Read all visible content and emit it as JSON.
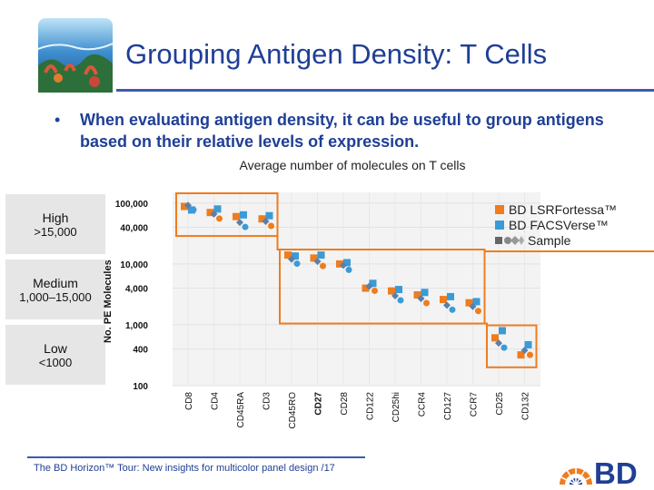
{
  "slide": {
    "title": "Grouping Antigen Density: T Cells",
    "bullet": "When evaluating antigen density, it can be useful to group antigens based on their relative levels of expression.",
    "footer_brand": "The BD Horizon™ Tour:",
    "footer_rest": " New insights for multicolor panel design /17",
    "logo_text": "BD"
  },
  "groups": [
    {
      "name": "High",
      "range": ">15,000"
    },
    {
      "name": "Medium",
      "range": "1,000–15,000"
    },
    {
      "name": "Low",
      "range": "<1000"
    }
  ],
  "legend": {
    "items": [
      {
        "label": "BD LSRFortessa™",
        "color": "#ee7d1f"
      },
      {
        "label": "BD FACSVerse™",
        "color": "#3a9bd6"
      },
      {
        "label": "Sample",
        "color": "#666666"
      }
    ]
  },
  "chart_data": {
    "type": "scatter",
    "title": "Average number of molecules on T cells",
    "xlabel": "",
    "ylabel": "No. PE Molecules",
    "y_scale": "log",
    "ylim": [
      100,
      150000
    ],
    "y_ticks": [
      100,
      400,
      1000,
      4000,
      10000,
      40000,
      100000
    ],
    "y_tick_labels": [
      "100",
      "400",
      "1,000",
      "4,000",
      "10,000",
      "40,000",
      "100,000"
    ],
    "categories": [
      "CD8",
      "CD4",
      "CD45RA",
      "CD3",
      "CD45RO",
      "CD27",
      "CD28",
      "CD122",
      "CD25hi",
      "CCR4",
      "CD127",
      "CCR7",
      "CD25",
      "CD132"
    ],
    "bold_categories": [
      "CD27"
    ],
    "series": [
      {
        "name": "BD LSRFortessa™",
        "color": "#ee7d1f",
        "values": [
          88000,
          70000,
          60000,
          55000,
          14000,
          12500,
          10000,
          4000,
          3600,
          3100,
          2600,
          2300,
          610,
          320
        ]
      },
      {
        "name": "BD FACSVerse™",
        "color": "#3a9bd6",
        "values": [
          77000,
          80000,
          64000,
          62000,
          13500,
          14000,
          10500,
          4800,
          3800,
          3400,
          2900,
          2400,
          800,
          470
        ]
      },
      {
        "name": "Sample",
        "color": "#666666",
        "values": [
          92000,
          66000,
          48000,
          50000,
          12000,
          11000,
          9500,
          4300,
          3000,
          2700,
          2100,
          2000,
          500,
          380
        ]
      }
    ],
    "groups": [
      "High",
      "Medium",
      "Low"
    ]
  }
}
